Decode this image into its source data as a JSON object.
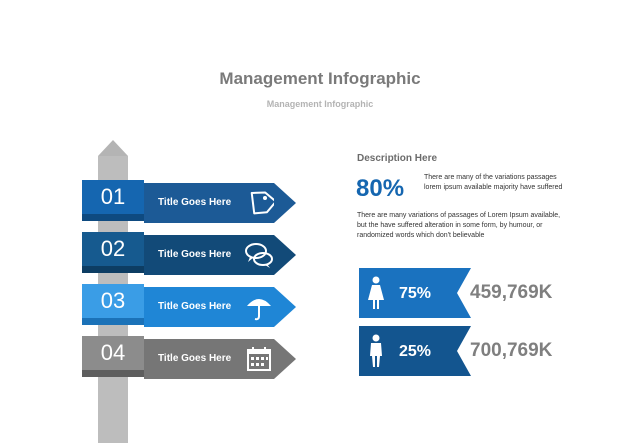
{
  "header": {
    "title": "Management Infographic",
    "subtitle": "Management Infographic"
  },
  "signpost": {
    "items": [
      {
        "number": "01",
        "label": "Title Goes Here",
        "icon": "price-tag-icon",
        "box_color": "#1566b0",
        "arrow_color": "#1c5a96",
        "shadow_color": "#0e4a80"
      },
      {
        "number": "02",
        "label": "Title Goes Here",
        "icon": "chat-bubbles-icon",
        "box_color": "#165a8f",
        "arrow_color": "#124a78",
        "shadow_color": "#0d3d63"
      },
      {
        "number": "03",
        "label": "Title Goes Here",
        "icon": "umbrella-icon",
        "box_color": "#3a9de6",
        "arrow_color": "#1f86d6",
        "shadow_color": "#1b72b8"
      },
      {
        "number": "04",
        "label": "Title Goes Here",
        "icon": "calendar-icon",
        "box_color": "#8c8c8c",
        "arrow_color": "#767676",
        "shadow_color": "#5e5e5e"
      }
    ]
  },
  "description": {
    "title": "Description Here",
    "highlight_pct": "80%",
    "highlight_text": "There are many of the variations passages lorem ipsum available majority have suffered",
    "paragraph": "There are many variations of passages  of Lorem Ipsum available, but the have suffered alteration in some  form, by humour, or randomized words  which  don't believable"
  },
  "stats": [
    {
      "icon": "female-icon",
      "pct": "75%",
      "value": "459,769K",
      "color": "#1a72bf"
    },
    {
      "icon": "male-icon",
      "pct": "25%",
      "value": "700,769K",
      "color": "#13558f"
    }
  ]
}
